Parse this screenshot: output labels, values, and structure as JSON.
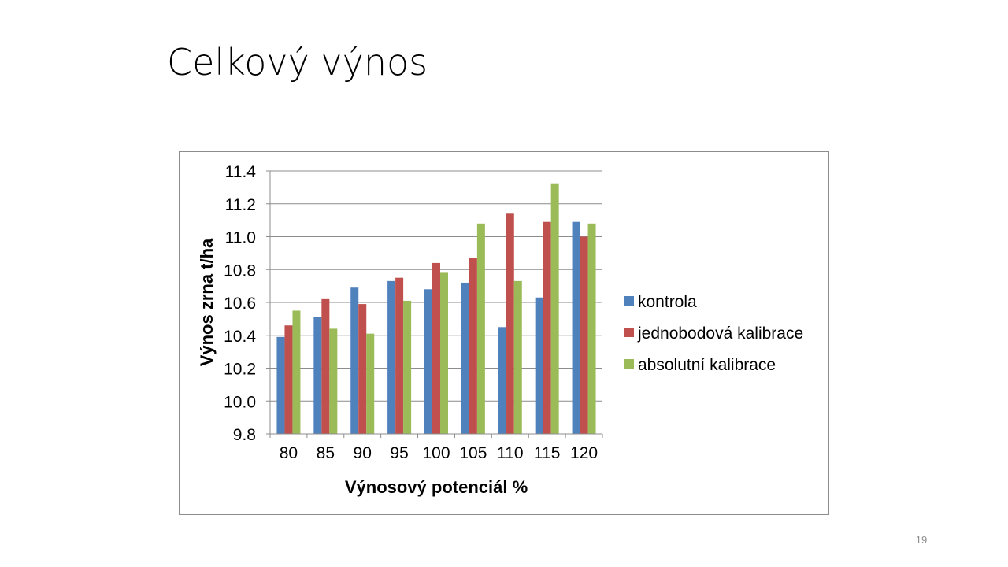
{
  "slide": {
    "title": "Celkový výnos",
    "page_number": "19"
  },
  "chart_data": {
    "type": "bar",
    "title": "",
    "xlabel": "Výnosový potenciál %",
    "ylabel": "Výnos zrna t/ha",
    "categories": [
      "80",
      "85",
      "90",
      "95",
      "100",
      "105",
      "110",
      "115",
      "120"
    ],
    "ylim": [
      9.8,
      11.4
    ],
    "yticks": [
      "9.8",
      "10.0",
      "10.2",
      "10.4",
      "10.6",
      "10.8",
      "11.0",
      "11.2",
      "11.4"
    ],
    "grid": true,
    "legend_position": "right",
    "series": [
      {
        "name": "kontrola",
        "color": "#4F81BD",
        "values": [
          10.39,
          10.51,
          10.69,
          10.73,
          10.68,
          10.72,
          10.45,
          10.63,
          11.09
        ]
      },
      {
        "name": "jednobodová kalibrace",
        "color": "#C0504D",
        "values": [
          10.46,
          10.62,
          10.59,
          10.75,
          10.84,
          10.87,
          11.14,
          11.09,
          11.0
        ]
      },
      {
        "name": "absolutní kalibrace",
        "color": "#9BBB59",
        "values": [
          10.55,
          10.44,
          10.41,
          10.61,
          10.78,
          11.08,
          10.73,
          11.32,
          11.08
        ]
      }
    ]
  }
}
